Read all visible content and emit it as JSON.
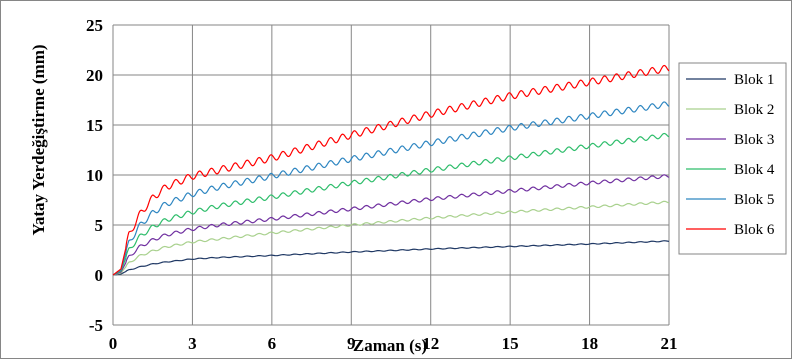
{
  "chart_data": {
    "type": "line",
    "title": "",
    "xlabel": "Zaman (s)",
    "ylabel": "Yatay Yerdeğiştirme (mm)",
    "xlim": [
      0,
      21
    ],
    "ylim": [
      -5,
      25
    ],
    "x_ticks": [
      0,
      3,
      6,
      9,
      12,
      15,
      18,
      21
    ],
    "y_ticks": [
      -5,
      0,
      5,
      10,
      15,
      20,
      25
    ],
    "grid": true,
    "legend_position": "right",
    "series": [
      {
        "name": "Blok 1",
        "color": "#1f3864",
        "x": [
          0,
          0.3,
          0.6,
          1,
          1.5,
          2,
          3,
          4,
          6,
          9,
          12,
          15,
          18,
          21
        ],
        "y": [
          0,
          0.1,
          0.5,
          0.8,
          1.1,
          1.3,
          1.6,
          1.75,
          1.95,
          2.3,
          2.6,
          2.85,
          3.1,
          3.4
        ]
      },
      {
        "name": "Blok 2",
        "color": "#a9d18e",
        "x": [
          0,
          0.3,
          0.6,
          1,
          1.5,
          2,
          3,
          4,
          6,
          9,
          12,
          15,
          18,
          21
        ],
        "y": [
          0,
          0.2,
          1.2,
          1.9,
          2.4,
          2.8,
          3.3,
          3.6,
          4.2,
          5.0,
          5.7,
          6.3,
          6.8,
          7.3
        ]
      },
      {
        "name": "Blok 3",
        "color": "#7030a0",
        "x": [
          0,
          0.3,
          0.6,
          1,
          1.5,
          2,
          3,
          4,
          6,
          9,
          12,
          15,
          18,
          21
        ],
        "y": [
          0,
          0.3,
          1.8,
          2.8,
          3.5,
          4.0,
          4.6,
          5.0,
          5.6,
          6.6,
          7.6,
          8.4,
          9.2,
          9.9
        ]
      },
      {
        "name": "Blok 4",
        "color": "#2ebd6b",
        "x": [
          0,
          0.3,
          0.6,
          1,
          1.5,
          2,
          3,
          4,
          6,
          9,
          12,
          15,
          18,
          21
        ],
        "y": [
          0,
          0.4,
          2.5,
          3.8,
          4.8,
          5.5,
          6.3,
          6.9,
          7.8,
          9.2,
          10.5,
          11.7,
          12.9,
          14.0
        ]
      },
      {
        "name": "Blok 5",
        "color": "#2e86c1",
        "x": [
          0,
          0.3,
          0.6,
          1,
          1.5,
          2,
          3,
          4,
          6,
          9,
          12,
          15,
          18,
          21
        ],
        "y": [
          0,
          0.5,
          3.2,
          4.9,
          6.2,
          7.1,
          8.1,
          8.8,
          9.9,
          11.6,
          13.2,
          14.7,
          15.9,
          17.1
        ]
      },
      {
        "name": "Blok 6",
        "color": "#ff0000",
        "x": [
          0,
          0.3,
          0.6,
          1,
          1.5,
          2,
          3,
          4,
          6,
          9,
          12,
          15,
          18,
          21
        ],
        "y": [
          0,
          0.6,
          4.0,
          6.0,
          7.7,
          8.8,
          9.9,
          10.5,
          11.7,
          14.0,
          16.1,
          17.9,
          19.3,
          20.7
        ]
      }
    ]
  }
}
